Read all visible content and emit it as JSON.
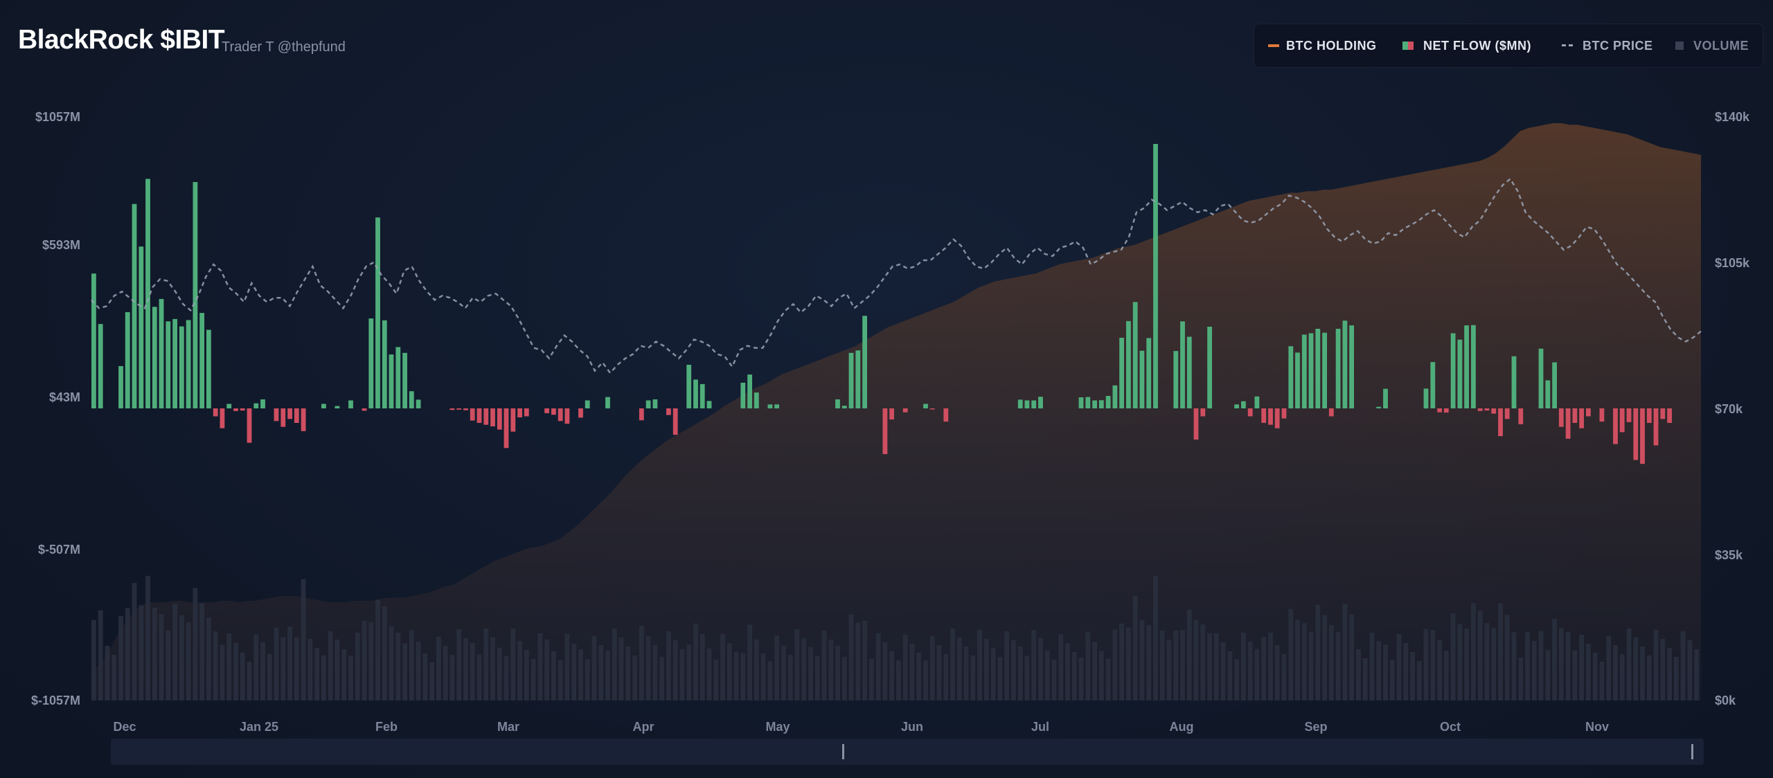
{
  "header": {
    "title": "BlackRock $IBIT",
    "subtitle": "Trader T @thepfund"
  },
  "legend": {
    "items": [
      {
        "label": "BTC HOLDING",
        "color": "#e07a3b"
      },
      {
        "label": "NET FLOW ($MN)",
        "color": "#4fae7b",
        "color2": "#cf4f61"
      },
      {
        "label": "BTC PRICE",
        "color": "#9aa3b5"
      },
      {
        "label": "VOLUME",
        "color": "#3a4152"
      }
    ]
  },
  "colors": {
    "inflow": "#4fae7b",
    "outflow": "#cf4f61",
    "price_line": "#9aa3b5",
    "holding_fill": "#5a3b2a",
    "volume": "#2a3040"
  },
  "chart_data": {
    "type": "bar",
    "left_axis": {
      "ticks": [
        "$1057M",
        "$593M",
        "$43M",
        "$-507M",
        "$-1057M"
      ],
      "range": [
        -1057,
        1057
      ]
    },
    "right_axis": {
      "ticks": [
        "$140k",
        "$105k",
        "$70k",
        "$35k",
        "$0k"
      ],
      "range": [
        0,
        140000
      ]
    },
    "x_labels": [
      "Dec",
      "Jan 25",
      "Feb",
      "Mar",
      "Apr",
      "May",
      "Jun",
      "Jul",
      "Aug",
      "Sep",
      "Oct",
      "Nov"
    ],
    "net_flow": [
      510,
      319,
      0,
      0,
      160,
      364,
      773,
      612,
      868,
      384,
      414,
      329,
      338,
      310,
      334,
      856,
      361,
      297,
      240,
      186,
      17,
      11,
      0,
      0,
      19,
      34,
      0,
      11,
      0,
      239,
      220,
      612,
      0,
      0,
      17,
      0,
      9,
      0,
      30,
      0,
      250,
      340,
      722,
      333,
      204,
      232,
      210,
      65,
      33,
      0,
      0,
      0,
      0,
      0,
      0,
      0,
      50,
      19,
      23,
      30,
      11,
      19,
      41,
      0,
      0,
      0,
      0,
      34,
      0,
      0,
      11,
      0,
      41,
      30,
      0,
      0,
      43,
      0,
      0,
      0,
      0,
      48,
      30,
      34,
      0,
      0,
      0,
      0,
      165,
      109,
      92,
      28,
      0,
      0,
      0,
      0,
      97,
      128,
      60,
      0,
      15,
      15,
      0,
      0,
      0,
      0,
      0,
      0,
      0,
      0,
      34,
      10,
      210,
      219,
      350,
      0,
      0,
      0,
      0,
      0,
      0,
      0,
      0,
      17,
      0,
      0,
      0,
      0,
      0,
      0,
      0,
      0,
      0,
      0,
      0,
      0,
      0,
      33,
      30,
      30,
      44,
      0,
      0,
      0,
      0,
      0,
      42,
      43,
      30,
      31,
      47,
      87,
      267,
      330,
      402,
      218,
      266,
      1000,
      0,
      0,
      217,
      329,
      271,
      253,
      306,
      309,
      0,
      0,
      0,
      15,
      27,
      27,
      45,
      300,
      41,
      0,
      0,
      235,
      211,
      279,
      284,
      301,
      286,
      275,
      301,
      332,
      314,
      0,
      0,
      0,
      6,
      74,
      0,
      0,
      0,
      0,
      0,
      75,
      175,
      164,
      141,
      284,
      260,
      314,
      315,
      329,
      290,
      341,
      328,
      297,
      197,
      0,
      0,
      0,
      226,
      106,
      174,
      171,
      233,
      118,
      0,
      0,
      0,
      0,
      0,
      0,
      0,
      0,
      0,
      0,
      0,
      0,
      0,
      0,
      0,
      0,
      0,
      0,
      0,
      0,
      0,
      106,
      69,
      15,
      120,
      155,
      151,
      186,
      205,
      305,
      250,
      228,
      299,
      364,
      354,
      289,
      0,
      0,
      0,
      0,
      0,
      0,
      0,
      0,
      0,
      0,
      0,
      0,
      0,
      0,
      0,
      0,
      0,
      0,
      0,
      0,
      0,
      0,
      0,
      0,
      0,
      0,
      0,
      0,
      0,
      0,
      0,
      0,
      0,
      0,
      0,
      0,
      0,
      0,
      0,
      0,
      0,
      0,
      0,
      0,
      0,
      0,
      0,
      0,
      0,
      0,
      0,
      0,
      0,
      0,
      0,
      0,
      0,
      0,
      0,
      0,
      0,
      0,
      0,
      0,
      0,
      0,
      0,
      0,
      0,
      0,
      0,
      0,
      0,
      0,
      0,
      0,
      0,
      0,
      0,
      0,
      0,
      0,
      0,
      0,
      0,
      0,
      0,
      0,
      0,
      0,
      0,
      0,
      0,
      0,
      0,
      0,
      0,
      0,
      0,
      0,
      0,
      0,
      0,
      0,
      0,
      0,
      0,
      0,
      0,
      0,
      0,
      0,
      0,
      0,
      0,
      0,
      0,
      0,
      0,
      0,
      0,
      0,
      0,
      0,
      0,
      0,
      0,
      0,
      0,
      0,
      0,
      0,
      0,
      0,
      0,
      0,
      0,
      0,
      0,
      0,
      0,
      0,
      0,
      0,
      0,
      0,
      0,
      0,
      0,
      0,
      0,
      0,
      0,
      0,
      0,
      0,
      0,
      0,
      0,
      0,
      0,
      0,
      0,
      0,
      0,
      0,
      0,
      0,
      0,
      0,
      0,
      0,
      0,
      0,
      0,
      0,
      0,
      0,
      0,
      0,
      0,
      0,
      0,
      0,
      0,
      0,
      0,
      0,
      0,
      0,
      0,
      0,
      0,
      0,
      0,
      0,
      0,
      0,
      0,
      0,
      0,
      0,
      0,
      0,
      0,
      0,
      0,
      0,
      0,
      0,
      0,
      0,
      0
    ],
    "btc_price": [
      96000,
      94000,
      94500,
      97000,
      98000,
      96500,
      95000,
      94000,
      99000,
      101000,
      100500,
      98000,
      95000,
      93500,
      97000,
      101500,
      104500,
      103000,
      99000,
      97500,
      95500,
      100000,
      97000,
      95500,
      96500,
      96500,
      94500,
      98000,
      101000,
      104000,
      99500,
      98000,
      96000,
      94000,
      97000,
      101000,
      104000,
      105000,
      102000,
      100000,
      97500,
      103000,
      104000,
      100500,
      98000,
      96000,
      97000,
      96500,
      95500,
      94000,
      96500,
      95500,
      97000,
      97500,
      96000,
      94500,
      91500,
      88000,
      84500,
      84000,
      82000,
      85000,
      87500,
      86000,
      84000,
      82500,
      79000,
      81000,
      78500,
      80500,
      82000,
      83000,
      85000,
      84500,
      86000,
      85000,
      83500,
      82000,
      84000,
      86500,
      86000,
      85000,
      83000,
      82500,
      80000,
      84000,
      85000,
      84500,
      84500,
      87500,
      91000,
      93500,
      95000,
      93000,
      94500,
      97000,
      96000,
      94500,
      96500,
      97500,
      94000,
      95500,
      97000,
      99000,
      101500,
      104000,
      104500,
      103500,
      104000,
      105500,
      105500,
      107000,
      108500,
      110500,
      109000,
      106000,
      104000,
      103500,
      105000,
      107000,
      108500,
      106000,
      104500,
      107000,
      108500,
      107000,
      106500,
      108500,
      109000,
      110000,
      108500,
      104500,
      105500,
      107000,
      107500,
      108000,
      111000,
      117000,
      118000,
      120000,
      119000,
      117500,
      118500,
      119500,
      118000,
      117000,
      117500,
      116500,
      118500,
      119000,
      117000,
      115000,
      114500,
      115000,
      116500,
      118000,
      119000,
      121000,
      120500,
      119500,
      118000,
      116000,
      113000,
      111000,
      110000,
      111500,
      112500,
      110500,
      109500,
      110000,
      112000,
      111500,
      113000,
      114000,
      115000,
      116500,
      117500,
      116000,
      114000,
      112000,
      111000,
      113500,
      115000,
      118000,
      121000,
      123500,
      125000,
      122000,
      117000,
      115000,
      113500,
      112000,
      110000,
      108000,
      109000,
      111000,
      113500,
      113000,
      110500,
      107500,
      104500,
      103000,
      101000,
      99000,
      97000,
      95500,
      92000,
      89000,
      87000,
      86000,
      87000,
      88500
    ],
    "btc_holding": [
      0.2,
      0.22,
      0.3,
      0.4,
      0.48,
      0.55,
      0.6,
      0.62,
      0.62,
      0.62,
      0.63,
      0.63,
      0.62,
      0.62,
      0.62,
      0.62,
      0.63,
      0.63,
      0.62,
      0.63,
      0.63,
      0.64,
      0.65,
      0.66,
      0.66,
      0.66,
      0.65,
      0.64,
      0.63,
      0.62,
      0.62,
      0.62,
      0.63,
      0.63,
      0.63,
      0.64,
      0.65,
      0.65,
      0.65,
      0.66,
      0.67,
      0.68,
      0.7,
      0.72,
      0.73,
      0.76,
      0.79,
      0.82,
      0.85,
      0.88,
      0.9,
      0.92,
      0.94,
      0.96,
      0.97,
      0.98,
      1.0,
      1.02,
      1.06,
      1.1,
      1.15,
      1.2,
      1.25,
      1.3,
      1.36,
      1.42,
      1.47,
      1.52,
      1.56,
      1.6,
      1.64,
      1.67,
      1.7,
      1.73,
      1.76,
      1.79,
      1.82,
      1.86,
      1.89,
      1.92,
      1.95,
      1.98,
      2.0,
      2.03,
      2.06,
      2.08,
      2.1,
      2.12,
      2.14,
      2.16,
      2.18,
      2.2,
      2.22,
      2.24,
      2.27,
      2.3,
      2.33,
      2.36,
      2.38,
      2.4,
      2.42,
      2.44,
      2.46,
      2.48,
      2.5,
      2.52,
      2.55,
      2.58,
      2.61,
      2.63,
      2.65,
      2.66,
      2.67,
      2.68,
      2.69,
      2.7,
      2.72,
      2.74,
      2.76,
      2.77,
      2.78,
      2.79,
      2.8,
      2.82,
      2.84,
      2.86,
      2.87,
      2.88,
      2.9,
      2.92,
      2.94,
      2.96,
      2.98,
      3.0,
      3.02,
      3.04,
      3.06,
      3.08,
      3.1,
      3.12,
      3.14,
      3.16,
      3.17,
      3.18,
      3.19,
      3.2,
      3.21,
      3.21,
      3.22,
      3.22,
      3.23,
      3.23,
      3.24,
      3.25,
      3.26,
      3.27,
      3.28,
      3.29,
      3.3,
      3.31,
      3.32,
      3.33,
      3.34,
      3.35,
      3.36,
      3.37,
      3.38,
      3.39,
      3.4,
      3.41,
      3.43,
      3.46,
      3.5,
      3.55,
      3.6,
      3.62,
      3.63,
      3.64,
      3.65,
      3.65,
      3.64,
      3.64,
      3.63,
      3.62,
      3.61,
      3.6,
      3.59,
      3.58,
      3.56,
      3.54,
      3.52,
      3.5,
      3.49,
      3.48,
      3.47,
      3.46,
      3.45
    ],
    "volume_note": "relative"
  }
}
